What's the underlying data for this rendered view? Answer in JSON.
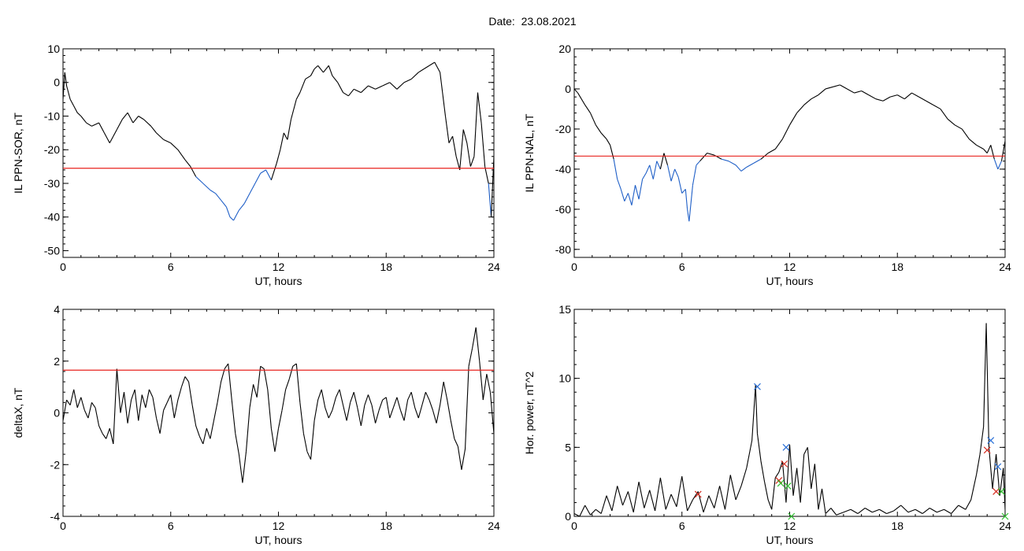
{
  "page_title": "Date:  23.08.2021",
  "colors": {
    "data": "#000000",
    "highlight": "#1f5fc7",
    "threshold": "#e8221e",
    "marker_blue": "#2a6fd6",
    "marker_red": "#d42a1e",
    "marker_green": "#2fbf2f"
  },
  "chart_data": [
    {
      "type": "line",
      "title": "",
      "xlabel": "UT, hours",
      "ylabel": "IL PPN-SOR, nT",
      "xlim": [
        0,
        24
      ],
      "ylim": [
        -52,
        10
      ],
      "xticks": [
        0,
        6,
        12,
        18,
        24
      ],
      "yticks": [
        10,
        0,
        -10,
        -20,
        -30,
        -40,
        -50
      ],
      "threshold": -25.5,
      "grid": false,
      "x": [
        0,
        0.1,
        0.2,
        0.4,
        0.6,
        0.8,
        1.0,
        1.3,
        1.6,
        2.0,
        2.3,
        2.6,
        2.8,
        3.0,
        3.3,
        3.6,
        3.9,
        4.2,
        4.5,
        4.9,
        5.2,
        5.6,
        6.0,
        6.4,
        6.8,
        7.1,
        7.4,
        7.8,
        8.2,
        8.5,
        8.8,
        9.1,
        9.3,
        9.5,
        9.8,
        10.1,
        10.4,
        10.7,
        11.0,
        11.3,
        11.6,
        11.9,
        12.1,
        12.3,
        12.5,
        12.7,
        13.0,
        13.2,
        13.5,
        13.8,
        14.0,
        14.2,
        14.5,
        14.8,
        15.0,
        15.3,
        15.6,
        15.9,
        16.2,
        16.6,
        17.0,
        17.4,
        17.8,
        18.2,
        18.6,
        19.0,
        19.4,
        19.8,
        20.1,
        20.4,
        20.7,
        21.0,
        21.3,
        21.5,
        21.7,
        21.9,
        22.1,
        22.3,
        22.5,
        22.7,
        22.9,
        23.1,
        23.3,
        23.5,
        23.7,
        23.85,
        24.0
      ],
      "values": [
        -5,
        3,
        -1,
        -5,
        -7,
        -9,
        -10,
        -12,
        -13,
        -12,
        -15,
        -18,
        -16,
        -14,
        -11,
        -9,
        -12,
        -10,
        -11,
        -13,
        -15,
        -17,
        -18,
        -20,
        -23,
        -25,
        -28,
        -30,
        -32,
        -33,
        -35,
        -37,
        -40,
        -41,
        -38,
        -36,
        -33,
        -30,
        -27,
        -26,
        -29,
        -24,
        -20,
        -15,
        -17,
        -11,
        -5,
        -3,
        1,
        2,
        4,
        5,
        3,
        5,
        2,
        0,
        -3,
        -4,
        -2,
        -3,
        -1,
        -2,
        -1,
        0,
        -2,
        0,
        1,
        3,
        4,
        5,
        6,
        3,
        -10,
        -18,
        -16,
        -22,
        -26,
        -14,
        -18,
        -25,
        -22,
        -3,
        -12,
        -25,
        -30,
        -40,
        -22
      ]
    },
    {
      "type": "line",
      "title": "",
      "xlabel": "UT, hours",
      "ylabel": "IL PPN-NAL, nT",
      "xlim": [
        0,
        24
      ],
      "ylim": [
        -84,
        20
      ],
      "xticks": [
        0,
        6,
        12,
        18,
        24
      ],
      "yticks": [
        20,
        0,
        -20,
        -40,
        -60,
        -80
      ],
      "threshold": -33.5,
      "grid": false,
      "x": [
        0,
        0.2,
        0.4,
        0.6,
        0.9,
        1.2,
        1.5,
        1.8,
        2.0,
        2.2,
        2.4,
        2.6,
        2.8,
        3.0,
        3.2,
        3.4,
        3.6,
        3.8,
        4.0,
        4.2,
        4.4,
        4.6,
        4.8,
        5.0,
        5.2,
        5.4,
        5.6,
        5.8,
        6.0,
        6.2,
        6.3,
        6.4,
        6.6,
        6.8,
        7.0,
        7.4,
        7.8,
        8.2,
        8.6,
        9.0,
        9.3,
        9.6,
        10.0,
        10.4,
        10.8,
        11.2,
        11.6,
        12.0,
        12.4,
        12.8,
        13.2,
        13.6,
        14.0,
        14.4,
        14.8,
        15.2,
        15.6,
        16.0,
        16.4,
        16.8,
        17.2,
        17.6,
        18.0,
        18.4,
        18.8,
        19.2,
        19.6,
        20.0,
        20.4,
        20.8,
        21.2,
        21.6,
        22.0,
        22.4,
        22.8,
        23.0,
        23.2,
        23.4,
        23.6,
        23.8,
        24.0
      ],
      "values": [
        0,
        -2,
        -5,
        -8,
        -12,
        -18,
        -22,
        -25,
        -28,
        -35,
        -45,
        -50,
        -56,
        -52,
        -58,
        -48,
        -55,
        -45,
        -42,
        -38,
        -45,
        -36,
        -40,
        -32,
        -38,
        -46,
        -40,
        -44,
        -52,
        -50,
        -60,
        -66,
        -48,
        -38,
        -36,
        -32,
        -33,
        -35,
        -36,
        -38,
        -41,
        -39,
        -37,
        -35,
        -32,
        -30,
        -25,
        -18,
        -12,
        -8,
        -5,
        -3,
        0,
        1,
        2,
        0,
        -2,
        -1,
        -3,
        -5,
        -6,
        -4,
        -3,
        -5,
        -2,
        -4,
        -6,
        -8,
        -10,
        -15,
        -18,
        -20,
        -25,
        -28,
        -30,
        -32,
        -28,
        -35,
        -40,
        -36,
        -26
      ]
    },
    {
      "type": "line",
      "title": "",
      "xlabel": "UT, hours",
      "ylabel": "deltaX, nT",
      "xlim": [
        0,
        24
      ],
      "ylim": [
        -4,
        4
      ],
      "xticks": [
        0,
        6,
        12,
        18,
        24
      ],
      "yticks": [
        4,
        2,
        0,
        -2,
        -4
      ],
      "threshold": 1.65,
      "grid": false,
      "x": [
        0,
        0.2,
        0.4,
        0.6,
        0.8,
        1.0,
        1.2,
        1.4,
        1.6,
        1.8,
        2.0,
        2.2,
        2.4,
        2.6,
        2.8,
        3.0,
        3.2,
        3.4,
        3.6,
        3.8,
        4.0,
        4.2,
        4.4,
        4.6,
        4.8,
        5.0,
        5.2,
        5.4,
        5.6,
        5.8,
        6.0,
        6.2,
        6.4,
        6.6,
        6.8,
        7.0,
        7.2,
        7.4,
        7.6,
        7.8,
        8.0,
        8.2,
        8.4,
        8.6,
        8.8,
        9.0,
        9.2,
        9.4,
        9.6,
        9.8,
        10.0,
        10.2,
        10.4,
        10.6,
        10.8,
        11.0,
        11.2,
        11.4,
        11.6,
        11.8,
        12.0,
        12.2,
        12.4,
        12.6,
        12.8,
        13.0,
        13.2,
        13.4,
        13.6,
        13.8,
        14.0,
        14.2,
        14.4,
        14.6,
        14.8,
        15.0,
        15.2,
        15.4,
        15.6,
        15.8,
        16.0,
        16.2,
        16.4,
        16.6,
        16.8,
        17.0,
        17.2,
        17.4,
        17.6,
        17.8,
        18.0,
        18.2,
        18.4,
        18.6,
        18.8,
        19.0,
        19.2,
        19.4,
        19.6,
        19.8,
        20.0,
        20.2,
        20.4,
        20.6,
        20.8,
        21.0,
        21.2,
        21.4,
        21.6,
        21.8,
        22.0,
        22.2,
        22.4,
        22.6,
        22.8,
        23.0,
        23.2,
        23.4,
        23.6,
        23.8,
        24.0
      ],
      "values": [
        -0.3,
        0.5,
        0.3,
        0.9,
        0.2,
        0.6,
        0.1,
        -0.2,
        0.4,
        0.2,
        -0.5,
        -0.8,
        -1.0,
        -0.6,
        -1.2,
        1.7,
        0.0,
        0.8,
        -0.4,
        0.5,
        0.9,
        -0.3,
        0.7,
        0.2,
        0.9,
        0.6,
        -0.2,
        -0.8,
        0.1,
        0.4,
        0.7,
        -0.2,
        0.5,
        1.0,
        1.4,
        1.2,
        0.3,
        -0.5,
        -0.9,
        -1.2,
        -0.6,
        -1.0,
        -0.3,
        0.4,
        1.2,
        1.7,
        1.9,
        0.5,
        -0.8,
        -1.6,
        -2.7,
        -1.5,
        0.2,
        1.1,
        0.6,
        1.8,
        1.7,
        0.9,
        -0.6,
        -1.5,
        -0.6,
        0.1,
        0.9,
        1.3,
        1.8,
        1.9,
        0.4,
        -0.8,
        -1.5,
        -1.8,
        -0.3,
        0.5,
        0.9,
        0.2,
        -0.2,
        0.1,
        0.6,
        0.9,
        0.3,
        -0.3,
        0.4,
        0.8,
        0.2,
        -0.5,
        0.3,
        0.7,
        0.3,
        -0.4,
        0.1,
        0.5,
        0.6,
        -0.2,
        0.2,
        0.6,
        0.1,
        -0.3,
        0.5,
        0.8,
        0.2,
        -0.2,
        0.3,
        0.8,
        0.5,
        0.1,
        -0.4,
        0.3,
        1.2,
        0.5,
        -0.3,
        -1.0,
        -1.3,
        -2.2,
        -1.4,
        1.8,
        2.5,
        3.3,
        2.0,
        0.5,
        1.5,
        0.8,
        -0.8
      ]
    },
    {
      "type": "line",
      "title": "",
      "xlabel": "UT, hours",
      "ylabel": "Hor. power, nT^2",
      "xlim": [
        0,
        24
      ],
      "ylim": [
        0,
        15
      ],
      "xticks": [
        0,
        6,
        12,
        18,
        24
      ],
      "yticks": [
        15,
        10,
        5,
        0
      ],
      "grid": false,
      "x": [
        0,
        0.3,
        0.6,
        0.9,
        1.2,
        1.5,
        1.8,
        2.1,
        2.4,
        2.7,
        3.0,
        3.3,
        3.6,
        3.9,
        4.2,
        4.5,
        4.8,
        5.1,
        5.4,
        5.7,
        6.0,
        6.3,
        6.6,
        6.9,
        7.2,
        7.5,
        7.8,
        8.1,
        8.4,
        8.7,
        9.0,
        9.3,
        9.6,
        9.9,
        10.1,
        10.2,
        10.4,
        10.6,
        10.8,
        11.0,
        11.2,
        11.4,
        11.6,
        11.8,
        12.0,
        12.2,
        12.4,
        12.6,
        12.8,
        13.0,
        13.2,
        13.4,
        13.6,
        13.8,
        14.0,
        14.3,
        14.6,
        15.0,
        15.4,
        15.8,
        16.2,
        16.6,
        17.0,
        17.4,
        17.8,
        18.2,
        18.6,
        19.0,
        19.4,
        19.8,
        20.2,
        20.6,
        21.0,
        21.4,
        21.8,
        22.1,
        22.4,
        22.6,
        22.8,
        22.95,
        23.1,
        23.3,
        23.5,
        23.7,
        23.9,
        24.0
      ],
      "values": [
        0.2,
        0.0,
        0.8,
        0.1,
        0.5,
        0.2,
        1.5,
        0.4,
        2.2,
        0.8,
        1.8,
        0.3,
        2.5,
        0.6,
        1.9,
        0.4,
        2.8,
        0.5,
        1.6,
        0.7,
        2.9,
        0.4,
        1.2,
        1.8,
        0.3,
        1.5,
        0.6,
        2.2,
        0.5,
        3.0,
        1.2,
        2.2,
        3.5,
        5.5,
        9.5,
        6.0,
        4.0,
        2.5,
        1.2,
        0.5,
        2.8,
        3.2,
        4.0,
        1.0,
        5.2,
        1.5,
        3.5,
        1.0,
        4.5,
        5.0,
        2.0,
        3.8,
        0.5,
        2.0,
        0.2,
        0.6,
        0.1,
        0.3,
        0.5,
        0.2,
        0.6,
        0.3,
        0.5,
        0.2,
        0.4,
        0.8,
        0.3,
        0.5,
        0.2,
        0.6,
        0.3,
        0.5,
        0.2,
        0.8,
        0.5,
        1.2,
        3.0,
        4.5,
        6.5,
        14.0,
        5.0,
        2.0,
        4.5,
        1.5,
        3.5,
        0.5
      ],
      "markers": {
        "blue": [
          [
            10.2,
            9.4
          ],
          [
            11.8,
            5.0
          ],
          [
            23.2,
            5.5
          ],
          [
            23.6,
            3.6
          ]
        ],
        "red": [
          [
            6.9,
            1.6
          ],
          [
            11.4,
            2.6
          ],
          [
            11.7,
            3.8
          ],
          [
            23.0,
            4.8
          ],
          [
            23.5,
            1.8
          ]
        ],
        "green": [
          [
            11.5,
            2.4
          ],
          [
            11.9,
            2.2
          ],
          [
            12.1,
            0.0
          ],
          [
            23.8,
            1.8
          ],
          [
            24.0,
            0.0
          ]
        ]
      }
    }
  ]
}
